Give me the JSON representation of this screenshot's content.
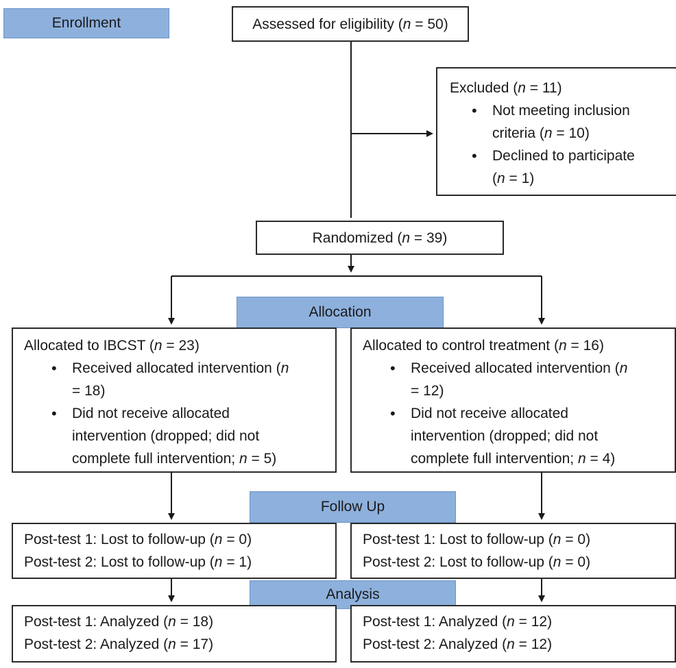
{
  "stages": {
    "enrollment": "Enrollment",
    "allocation": "Allocation",
    "follow_up": "Follow Up",
    "analysis": "Analysis"
  },
  "assessed": {
    "pre": "Assessed for eligibility (",
    "n": "n",
    "post": " = 50)"
  },
  "excluded": {
    "title": {
      "pre": "Excluded (",
      "n": "n",
      "post": " = 11)"
    },
    "bullet1": {
      "line1": "Not meeting inclusion",
      "line2_pre": "criteria (",
      "n": "n",
      "line2_post": " = 10)"
    },
    "bullet2": {
      "line1": "Declined to participate",
      "line2_pre": "(",
      "n": "n",
      "line2_post": " = 1)"
    }
  },
  "randomized": {
    "pre": "Randomized (",
    "n": "n",
    "post": " = 39)"
  },
  "left": {
    "alloc_title": {
      "pre": "Allocated to IBCST (",
      "n": "n",
      "post": " = 23)"
    },
    "received": {
      "line1_pre": "Received allocated intervention (",
      "n": "n",
      "line2": "= 18)"
    },
    "not_received": {
      "line1": "Did not receive allocated",
      "line2": "intervention (dropped; did not",
      "line3_pre": "complete full intervention; ",
      "n": "n",
      "line3_post": " = 5)"
    },
    "followup": [
      {
        "pre": "Post-test 1: Lost to follow-up (",
        "n": "n",
        "post": " = 0)"
      },
      {
        "pre": "Post-test 2: Lost to follow-up (",
        "n": "n",
        "post": " = 1)"
      }
    ],
    "analysis": [
      {
        "pre": "Post-test 1: Analyzed (",
        "n": "n",
        "post": " = 18)"
      },
      {
        "pre": "Post-test 2: Analyzed (",
        "n": "n",
        "post": " = 17)"
      }
    ]
  },
  "right": {
    "alloc_title": {
      "pre": "Allocated to control treatment (",
      "n": "n",
      "post": " = 16)"
    },
    "received": {
      "line1_pre": "Received allocated intervention (",
      "n": "n",
      "line2": "= 12)"
    },
    "not_received": {
      "line1": "Did not receive allocated",
      "line2": "intervention (dropped; did not",
      "line3_pre": "complete full intervention; ",
      "n": "n",
      "line3_post": " = 4)"
    },
    "followup": [
      {
        "pre": "Post-test 1: Lost to follow-up (",
        "n": "n",
        "post": " = 0)"
      },
      {
        "pre": "Post-test 2: Lost to follow-up (",
        "n": "n",
        "post": " = 0)"
      }
    ],
    "analysis": [
      {
        "pre": "Post-test 1: Analyzed (",
        "n": "n",
        "post": " = 12)"
      },
      {
        "pre": "Post-test 2: Analyzed (",
        "n": "n",
        "post": " = 12)"
      }
    ]
  }
}
